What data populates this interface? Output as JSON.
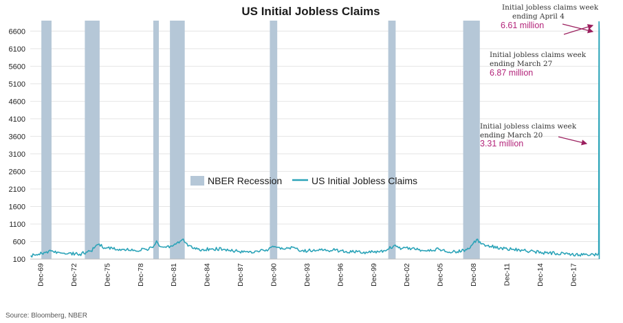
{
  "chart_data": {
    "type": "line",
    "title": "US Initial Jobless Claims",
    "source": "Source: Bloomberg, NBER",
    "xlabel": "",
    "ylabel": "",
    "ylim": [
      100,
      6900
    ],
    "y_ticks": [
      "100",
      "600",
      "1100",
      "1600",
      "2100",
      "2600",
      "3100",
      "3600",
      "4100",
      "4600",
      "5100",
      "5600",
      "6100",
      "6600"
    ],
    "x_ticks": [
      "Dec-69",
      "Dec-72",
      "Dec-75",
      "Dec-78",
      "Dec-81",
      "Dec-84",
      "Dec-87",
      "Dec-90",
      "Dec-93",
      "Dec-96",
      "Dec-99",
      "Dec-02",
      "Dec-05",
      "Dec-08",
      "Dec-11",
      "Dec-14",
      "Dec-17"
    ],
    "x_range": [
      "1969-01",
      "2020-04"
    ],
    "grid": true,
    "legend": [
      "NBER Recession",
      "US Initial Jobless Claims"
    ],
    "recessions": [
      {
        "start": "1970-01",
        "end": "1970-11"
      },
      {
        "start": "1973-12",
        "end": "1975-03"
      },
      {
        "start": "1980-02",
        "end": "1980-07"
      },
      {
        "start": "1981-08",
        "end": "1982-11"
      },
      {
        "start": "1990-08",
        "end": "1991-03"
      },
      {
        "start": "2001-04",
        "end": "2001-11"
      },
      {
        "start": "2008-01",
        "end": "2009-06"
      }
    ],
    "series": [
      {
        "name": "US Initial Jobless Claims",
        "color": "#2aa3b8",
        "points": [
          [
            "1969-01",
            200
          ],
          [
            "1969-06",
            210
          ],
          [
            "1970-01",
            260
          ],
          [
            "1970-06",
            310
          ],
          [
            "1970-11",
            330
          ],
          [
            "1971-06",
            300
          ],
          [
            "1972-06",
            270
          ],
          [
            "1973-06",
            240
          ],
          [
            "1974-01",
            300
          ],
          [
            "1974-06",
            330
          ],
          [
            "1974-12",
            500
          ],
          [
            "1975-03",
            530
          ],
          [
            "1975-09",
            420
          ],
          [
            "1976-06",
            390
          ],
          [
            "1977-06",
            380
          ],
          [
            "1978-06",
            340
          ],
          [
            "1979-06",
            380
          ],
          [
            "1980-01",
            430
          ],
          [
            "1980-05",
            620
          ],
          [
            "1980-08",
            470
          ],
          [
            "1981-01",
            440
          ],
          [
            "1981-08",
            470
          ],
          [
            "1982-03",
            560
          ],
          [
            "1982-10",
            670
          ],
          [
            "1983-03",
            470
          ],
          [
            "1983-09",
            400
          ],
          [
            "1984-06",
            370
          ],
          [
            "1985-06",
            390
          ],
          [
            "1986-06",
            380
          ],
          [
            "1987-06",
            330
          ],
          [
            "1988-06",
            310
          ],
          [
            "1989-06",
            330
          ],
          [
            "1990-06",
            370
          ],
          [
            "1991-01",
            460
          ],
          [
            "1991-06",
            430
          ],
          [
            "1992-03",
            410
          ],
          [
            "1992-08",
            440
          ],
          [
            "1993-06",
            340
          ],
          [
            "1994-06",
            340
          ],
          [
            "1995-06",
            360
          ],
          [
            "1996-06",
            350
          ],
          [
            "1997-06",
            320
          ],
          [
            "1998-06",
            310
          ],
          [
            "1999-06",
            290
          ],
          [
            "2000-06",
            300
          ],
          [
            "2001-03",
            380
          ],
          [
            "2001-10",
            490
          ],
          [
            "2002-06",
            400
          ],
          [
            "2003-06",
            420
          ],
          [
            "2004-06",
            340
          ],
          [
            "2005-06",
            330
          ],
          [
            "2005-09",
            420
          ],
          [
            "2006-06",
            310
          ],
          [
            "2007-06",
            310
          ],
          [
            "2008-03",
            370
          ],
          [
            "2008-09",
            480
          ],
          [
            "2009-03",
            660
          ],
          [
            "2009-09",
            540
          ],
          [
            "2010-06",
            460
          ],
          [
            "2011-06",
            420
          ],
          [
            "2012-06",
            380
          ],
          [
            "2013-06",
            350
          ],
          [
            "2014-06",
            310
          ],
          [
            "2015-06",
            280
          ],
          [
            "2016-06",
            260
          ],
          [
            "2017-06",
            240
          ],
          [
            "2018-06",
            220
          ],
          [
            "2019-06",
            215
          ],
          [
            "2020-02",
            215
          ],
          [
            "2020-03",
            282
          ],
          [
            "2020-03-20",
            3310
          ],
          [
            "2020-03-27",
            6870
          ],
          [
            "2020-04-04",
            6610
          ]
        ]
      }
    ],
    "annotations": [
      {
        "text_line1": "Initial jobless claims week",
        "text_line2": "ending April 4",
        "value": "6.61 million"
      },
      {
        "text_line1": "Initial jobless claims week",
        "text_line2": "ending March 27",
        "value": "6.87 million"
      },
      {
        "text_line1": "Initial jobless claims week",
        "text_line2": "ending March 20",
        "value": "3.31 million"
      }
    ],
    "colors": {
      "recession": "#b5c7d7",
      "line": "#2aa3b8",
      "annotation_value": "#b3247a",
      "arrow": "#9b1f5e",
      "grid": "#e4e4e4"
    }
  }
}
